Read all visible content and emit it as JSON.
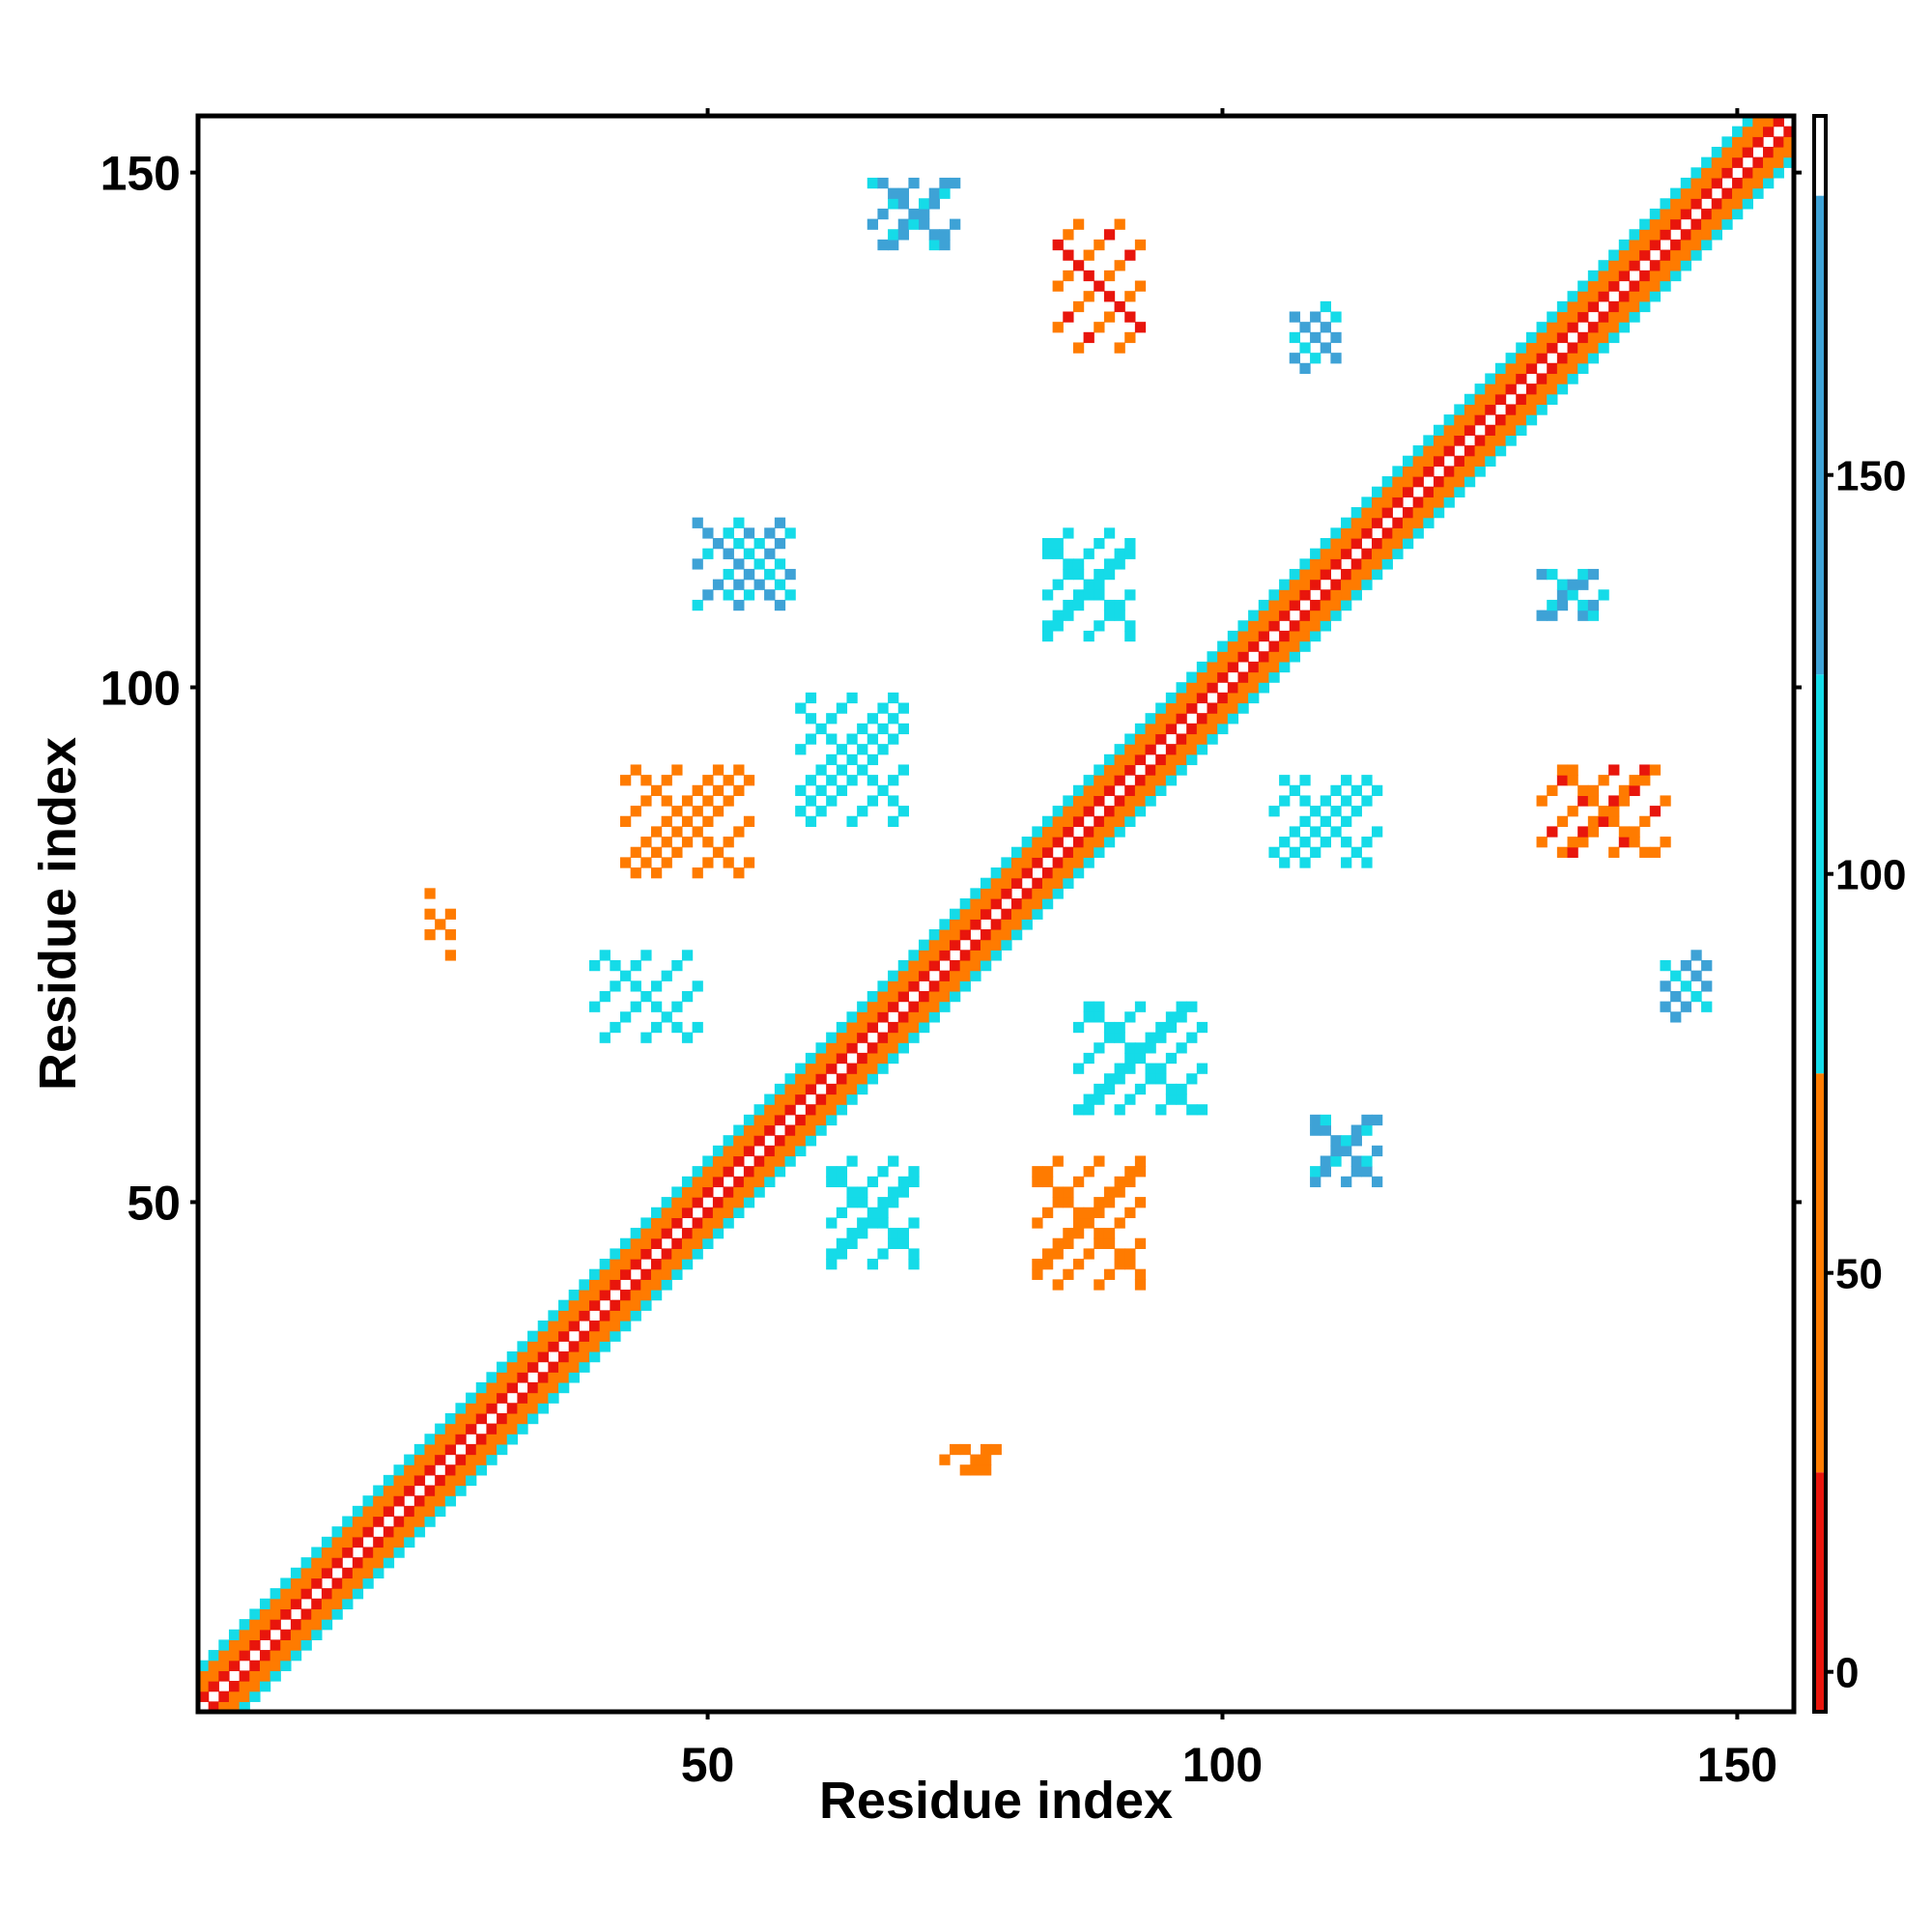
{
  "chart_data": {
    "type": "heatmap",
    "title": "",
    "xlabel": "Residue index",
    "ylabel": "Residue index",
    "xlim": [
      1,
      155
    ],
    "ylim": [
      1,
      155
    ],
    "x_ticks": [
      50,
      100,
      150
    ],
    "y_ticks": [
      50,
      100,
      150
    ],
    "grid": false,
    "colorbar": {
      "ticks": [
        0,
        50,
        100,
        150
      ],
      "range": [
        -5,
        195
      ],
      "bands": [
        {
          "from": -5,
          "to": 25,
          "color": "#e8150c"
        },
        {
          "from": 25,
          "to": 75,
          "color": "#ff7b00"
        },
        {
          "from": 75,
          "to": 125,
          "color": "#15dbe8"
        },
        {
          "from": 125,
          "to": 185,
          "color": "#3ea2d6"
        },
        {
          "from": 185,
          "to": 195,
          "color": "#ffffff"
        }
      ]
    },
    "diagonal_band": {
      "description": "contact values along main diagonal, |i-j| <= 4",
      "values_by_offset": {
        "0": 190,
        "1": 0,
        "2": 40,
        "3": 60,
        "4": 90
      }
    },
    "off_diagonal_clusters": [
      {
        "cx": 88,
        "cy": 139,
        "w": 9,
        "h": 12,
        "value": 40
      },
      {
        "cx": 137,
        "cy": 88,
        "w": 12,
        "h": 9,
        "value": 40
      },
      {
        "cx": 48,
        "cy": 87,
        "w": 12,
        "h": 10,
        "value": 45
      },
      {
        "cx": 87,
        "cy": 48,
        "w": 10,
        "h": 12,
        "value": 45
      },
      {
        "cx": 24,
        "cy": 77,
        "w": 3,
        "h": 6,
        "value": 50
      },
      {
        "cx": 76,
        "cy": 25,
        "w": 6,
        "h": 3,
        "value": 50
      },
      {
        "cx": 64,
        "cy": 93,
        "w": 10,
        "h": 12,
        "value": 110
      },
      {
        "cx": 92,
        "cy": 64,
        "w": 12,
        "h": 10,
        "value": 110
      },
      {
        "cx": 53,
        "cy": 112,
        "w": 8,
        "h": 8,
        "value": 130
      },
      {
        "cx": 87,
        "cy": 110,
        "w": 8,
        "h": 10,
        "value": 110
      },
      {
        "cx": 110,
        "cy": 87,
        "w": 10,
        "h": 8,
        "value": 110
      },
      {
        "cx": 112,
        "cy": 55,
        "w": 6,
        "h": 7,
        "value": 130
      },
      {
        "cx": 55,
        "cy": 112,
        "w": 6,
        "h": 6,
        "value": 130
      },
      {
        "cx": 70,
        "cy": 146,
        "w": 8,
        "h": 6,
        "value": 130
      },
      {
        "cx": 109,
        "cy": 134,
        "w": 5,
        "h": 6,
        "value": 130
      },
      {
        "cx": 134,
        "cy": 109,
        "w": 6,
        "h": 5,
        "value": 130
      },
      {
        "cx": 44,
        "cy": 70,
        "w": 10,
        "h": 8,
        "value": 110
      },
      {
        "cx": 66,
        "cy": 49,
        "w": 8,
        "h": 10,
        "value": 110
      },
      {
        "cx": 145,
        "cy": 71,
        "w": 5,
        "h": 6,
        "value": 140
      }
    ]
  }
}
